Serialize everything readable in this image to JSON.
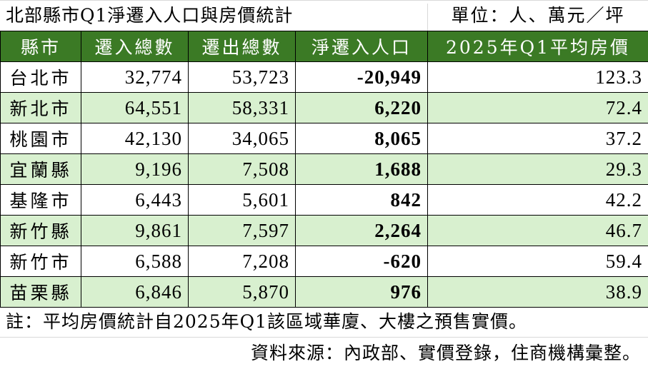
{
  "title": "北部縣市Q1淨遷入人口與房價統計",
  "unit": "單位：人、萬元／坪",
  "table": {
    "headers": [
      "縣市",
      "遷入總數",
      "遷出總數",
      "淨遷入人口",
      "2025年Q1平均房價"
    ],
    "rows": [
      {
        "county": "台北市",
        "in": "32,774",
        "out": "53,723",
        "net": "-20,949",
        "price": "123.3"
      },
      {
        "county": "新北市",
        "in": "64,551",
        "out": "58,331",
        "net": "6,220",
        "price": "72.4"
      },
      {
        "county": "桃園市",
        "in": "42,130",
        "out": "34,065",
        "net": "8,065",
        "price": "37.2"
      },
      {
        "county": "宜蘭縣",
        "in": "9,196",
        "out": "7,508",
        "net": "1,688",
        "price": "29.3"
      },
      {
        "county": "基隆市",
        "in": "6,443",
        "out": "5,601",
        "net": "842",
        "price": "42.2"
      },
      {
        "county": "新竹縣",
        "in": "9,861",
        "out": "7,597",
        "net": "2,264",
        "price": "46.7"
      },
      {
        "county": "新竹市",
        "in": "6,588",
        "out": "7,208",
        "net": "-620",
        "price": "59.4"
      },
      {
        "county": "苗栗縣",
        "in": "6,846",
        "out": "5,870",
        "net": "976",
        "price": "38.9"
      }
    ]
  },
  "note": "註：平均房價統計自2025年Q1該區域華廈、大樓之預售實價。",
  "source": "資料來源：內政部、實價登錄，住商機構彙整。",
  "colors": {
    "header_bg": "#3b7a25",
    "header_text": "#ffffff",
    "alt_row_bg": "#d8f0cf",
    "border": "#000000"
  }
}
